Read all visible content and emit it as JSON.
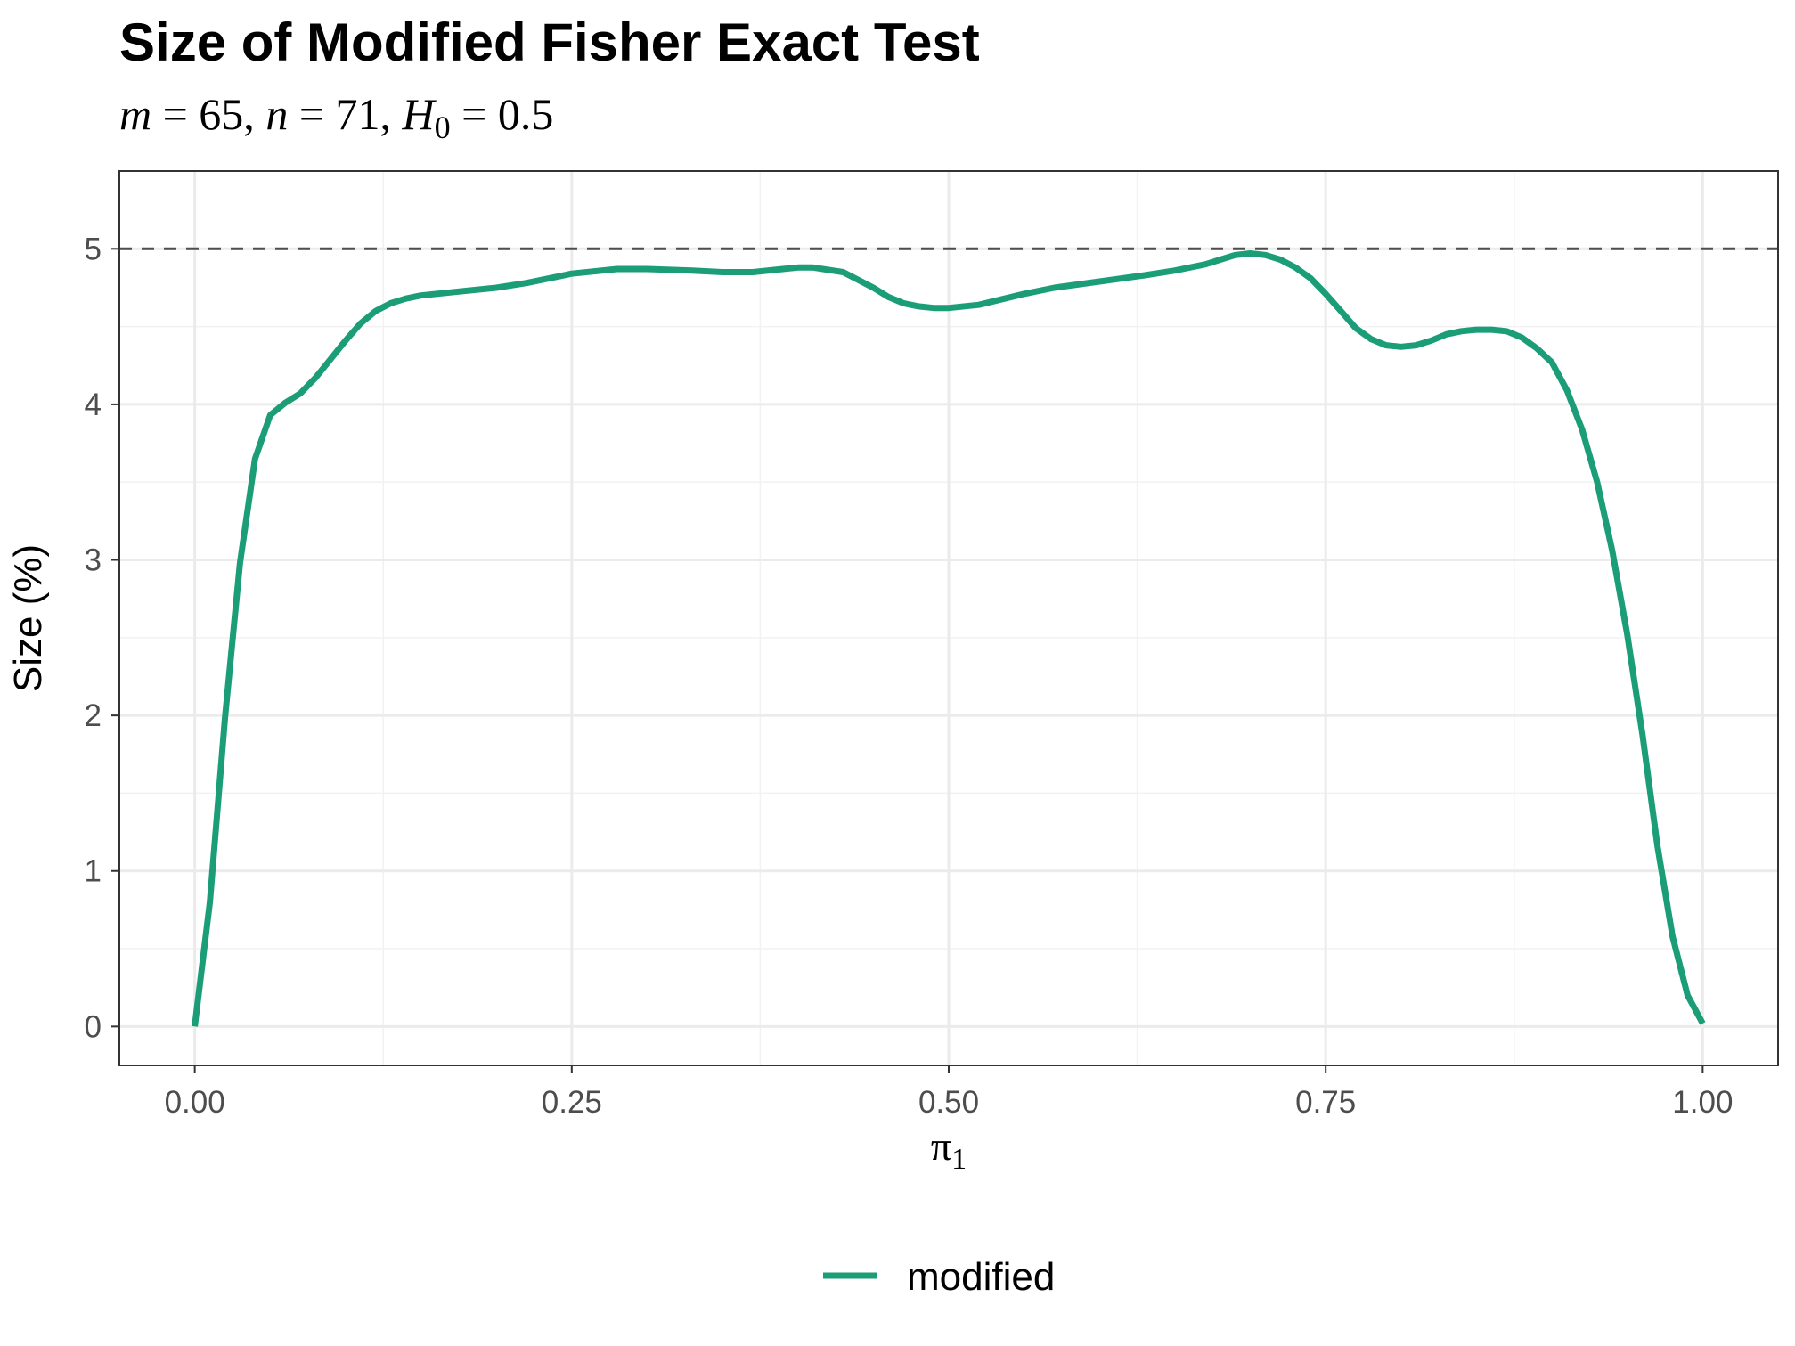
{
  "chart_data": {
    "type": "line",
    "title": "Size of Modified Fisher Exact Test",
    "subtitle": {
      "parts": [
        {
          "text": "m",
          "italic": true
        },
        {
          "text": " = 65,  ",
          "italic": false
        },
        {
          "text": "n",
          "italic": true
        },
        {
          "text": " = 71,  ",
          "italic": false
        },
        {
          "text": "H",
          "italic": true
        },
        {
          "text": "0",
          "italic": false,
          "subscript": true
        },
        {
          "text": " = 0.5",
          "italic": false
        }
      ]
    },
    "xlabel": {
      "main": "π",
      "sub": "1"
    },
    "ylabel": "Size (%)",
    "xlim": [
      -0.05,
      1.05
    ],
    "ylim": [
      -0.25,
      5.5
    ],
    "x_ticks": [
      0,
      0.25,
      0.5,
      0.75,
      1
    ],
    "x_tick_labels": [
      "0.00",
      "0.25",
      "0.50",
      "0.75",
      "1.00"
    ],
    "y_ticks": [
      0,
      1,
      2,
      3,
      4,
      5
    ],
    "y_tick_labels": [
      "0",
      "1",
      "2",
      "3",
      "4",
      "5"
    ],
    "grid": true,
    "reference_line": {
      "y": 5,
      "style": "dashed",
      "color": "#4d4d4d"
    },
    "legend": {
      "position": "bottom"
    },
    "series": [
      {
        "name": "modified",
        "color": "#1b9e77",
        "x": [
          0.0,
          0.01,
          0.02,
          0.03,
          0.04,
          0.05,
          0.06,
          0.07,
          0.08,
          0.09,
          0.1,
          0.11,
          0.12,
          0.13,
          0.14,
          0.15,
          0.17,
          0.2,
          0.22,
          0.25,
          0.28,
          0.3,
          0.33,
          0.35,
          0.37,
          0.39,
          0.4,
          0.41,
          0.43,
          0.45,
          0.46,
          0.47,
          0.48,
          0.49,
          0.5,
          0.52,
          0.55,
          0.57,
          0.6,
          0.63,
          0.65,
          0.67,
          0.68,
          0.69,
          0.7,
          0.71,
          0.72,
          0.73,
          0.74,
          0.75,
          0.76,
          0.77,
          0.78,
          0.79,
          0.8,
          0.81,
          0.82,
          0.83,
          0.84,
          0.85,
          0.86,
          0.87,
          0.88,
          0.89,
          0.9,
          0.91,
          0.92,
          0.93,
          0.94,
          0.95,
          0.96,
          0.97,
          0.98,
          0.99,
          1.0
        ],
        "values": [
          0.0,
          0.8,
          1.98,
          2.98,
          3.65,
          3.93,
          4.01,
          4.07,
          4.17,
          4.29,
          4.41,
          4.52,
          4.6,
          4.65,
          4.68,
          4.7,
          4.72,
          4.75,
          4.78,
          4.84,
          4.87,
          4.87,
          4.86,
          4.85,
          4.85,
          4.87,
          4.88,
          4.88,
          4.85,
          4.75,
          4.69,
          4.65,
          4.63,
          4.62,
          4.62,
          4.64,
          4.71,
          4.75,
          4.79,
          4.83,
          4.86,
          4.9,
          4.93,
          4.96,
          4.97,
          4.96,
          4.93,
          4.88,
          4.81,
          4.71,
          4.6,
          4.49,
          4.42,
          4.38,
          4.37,
          4.38,
          4.41,
          4.45,
          4.47,
          4.48,
          4.48,
          4.47,
          4.43,
          4.36,
          4.27,
          4.09,
          3.84,
          3.5,
          3.06,
          2.52,
          1.88,
          1.16,
          0.58,
          0.2,
          0.02
        ]
      }
    ]
  }
}
